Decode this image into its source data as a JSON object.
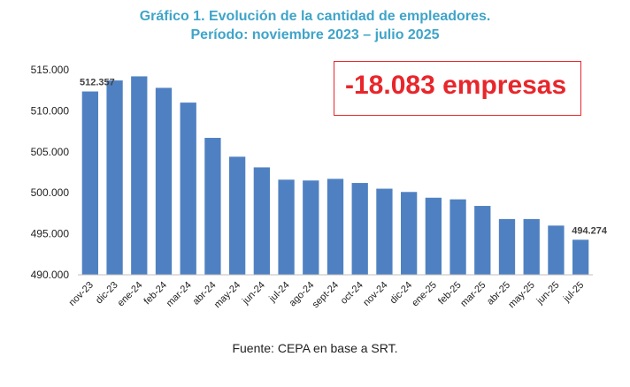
{
  "title_line1": "Gráfico 1. Evolución de la cantidad de empleadores.",
  "title_line2": "Período: noviembre 2023 – julio 2025",
  "callout": "-18.083 empresas",
  "source": "Fuente: CEPA en base a SRT.",
  "colors": {
    "title": "#3fa4c9",
    "bar": "#4f81c2",
    "callout": "#e8262b"
  },
  "chart_data": {
    "type": "bar",
    "categories": [
      "nov-23",
      "dic-23",
      "ene-24",
      "feb-24",
      "mar-24",
      "abr-24",
      "may-24",
      "jun-24",
      "jul-24",
      "ago-24",
      "sept-24",
      "oct-24",
      "nov-24",
      "dic-24",
      "ene-25",
      "feb-25",
      "mar-25",
      "abr-25",
      "may-25",
      "jun-25",
      "jul-25"
    ],
    "values": [
      512357,
      513700,
      514200,
      512800,
      511000,
      506700,
      504400,
      503100,
      501600,
      501500,
      501700,
      501200,
      500500,
      500100,
      499400,
      499200,
      498400,
      496800,
      496800,
      496000,
      494274
    ],
    "ylim": [
      490000,
      515000
    ],
    "yticks": [
      490000,
      495000,
      500000,
      505000,
      510000,
      515000
    ],
    "ytick_labels": [
      "490.000",
      "495.000",
      "500.000",
      "505.000",
      "510.000",
      "515.000"
    ],
    "data_labels": [
      {
        "index": 0,
        "text": "512.357"
      },
      {
        "index": 20,
        "text": "494.274"
      }
    ],
    "grid": false,
    "legend": "none"
  }
}
